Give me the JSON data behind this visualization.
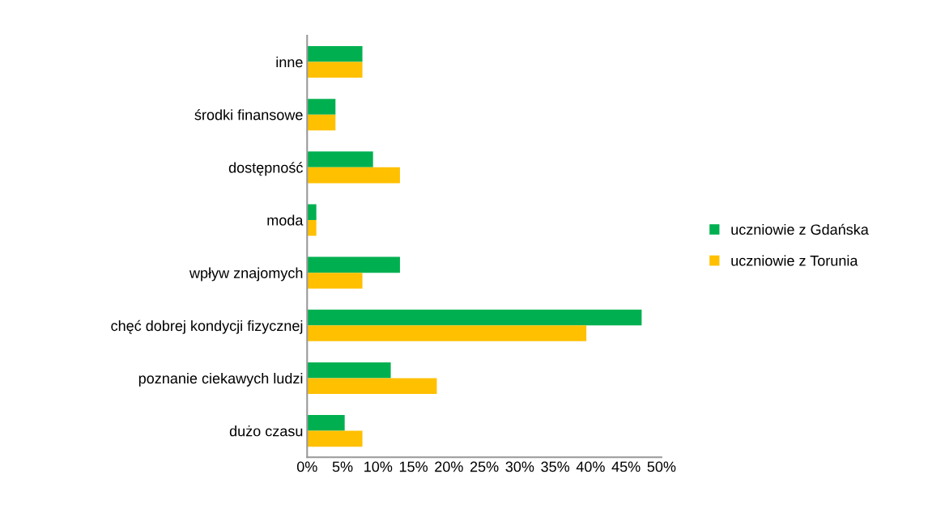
{
  "chart_data": {
    "type": "bar",
    "orientation": "horizontal",
    "categories": [
      "inne",
      "środki finansowe",
      "dostępność",
      "moda",
      "wpływ znajomych",
      "chęć dobrej kondycji fizycznej",
      "poznanie ciekawych ludzi",
      "dużo czasu"
    ],
    "series": [
      {
        "name": "uczniowie z Gdańska",
        "color": "#00b050",
        "values": [
          7.8,
          4.0,
          9.3,
          1.3,
          13.1,
          47.2,
          11.8,
          5.3
        ]
      },
      {
        "name": "uczniowie z Torunia",
        "color": "#ffc000",
        "values": [
          7.8,
          4.0,
          13.1,
          1.3,
          7.8,
          39.4,
          18.3,
          7.8
        ]
      }
    ],
    "xlim": [
      0,
      50
    ],
    "xticks": [
      {
        "value": 0,
        "label": "0%"
      },
      {
        "value": 5,
        "label": "5%"
      },
      {
        "value": 10,
        "label": "10%"
      },
      {
        "value": 15,
        "label": "15%"
      },
      {
        "value": 20,
        "label": "20%"
      },
      {
        "value": 25,
        "label": "25%"
      },
      {
        "value": 30,
        "label": "30%"
      },
      {
        "value": 35,
        "label": "35%"
      },
      {
        "value": 40,
        "label": "40%"
      },
      {
        "value": 45,
        "label": "45%"
      },
      {
        "value": 50,
        "label": "50%"
      }
    ],
    "grid": false,
    "legend": "right"
  }
}
